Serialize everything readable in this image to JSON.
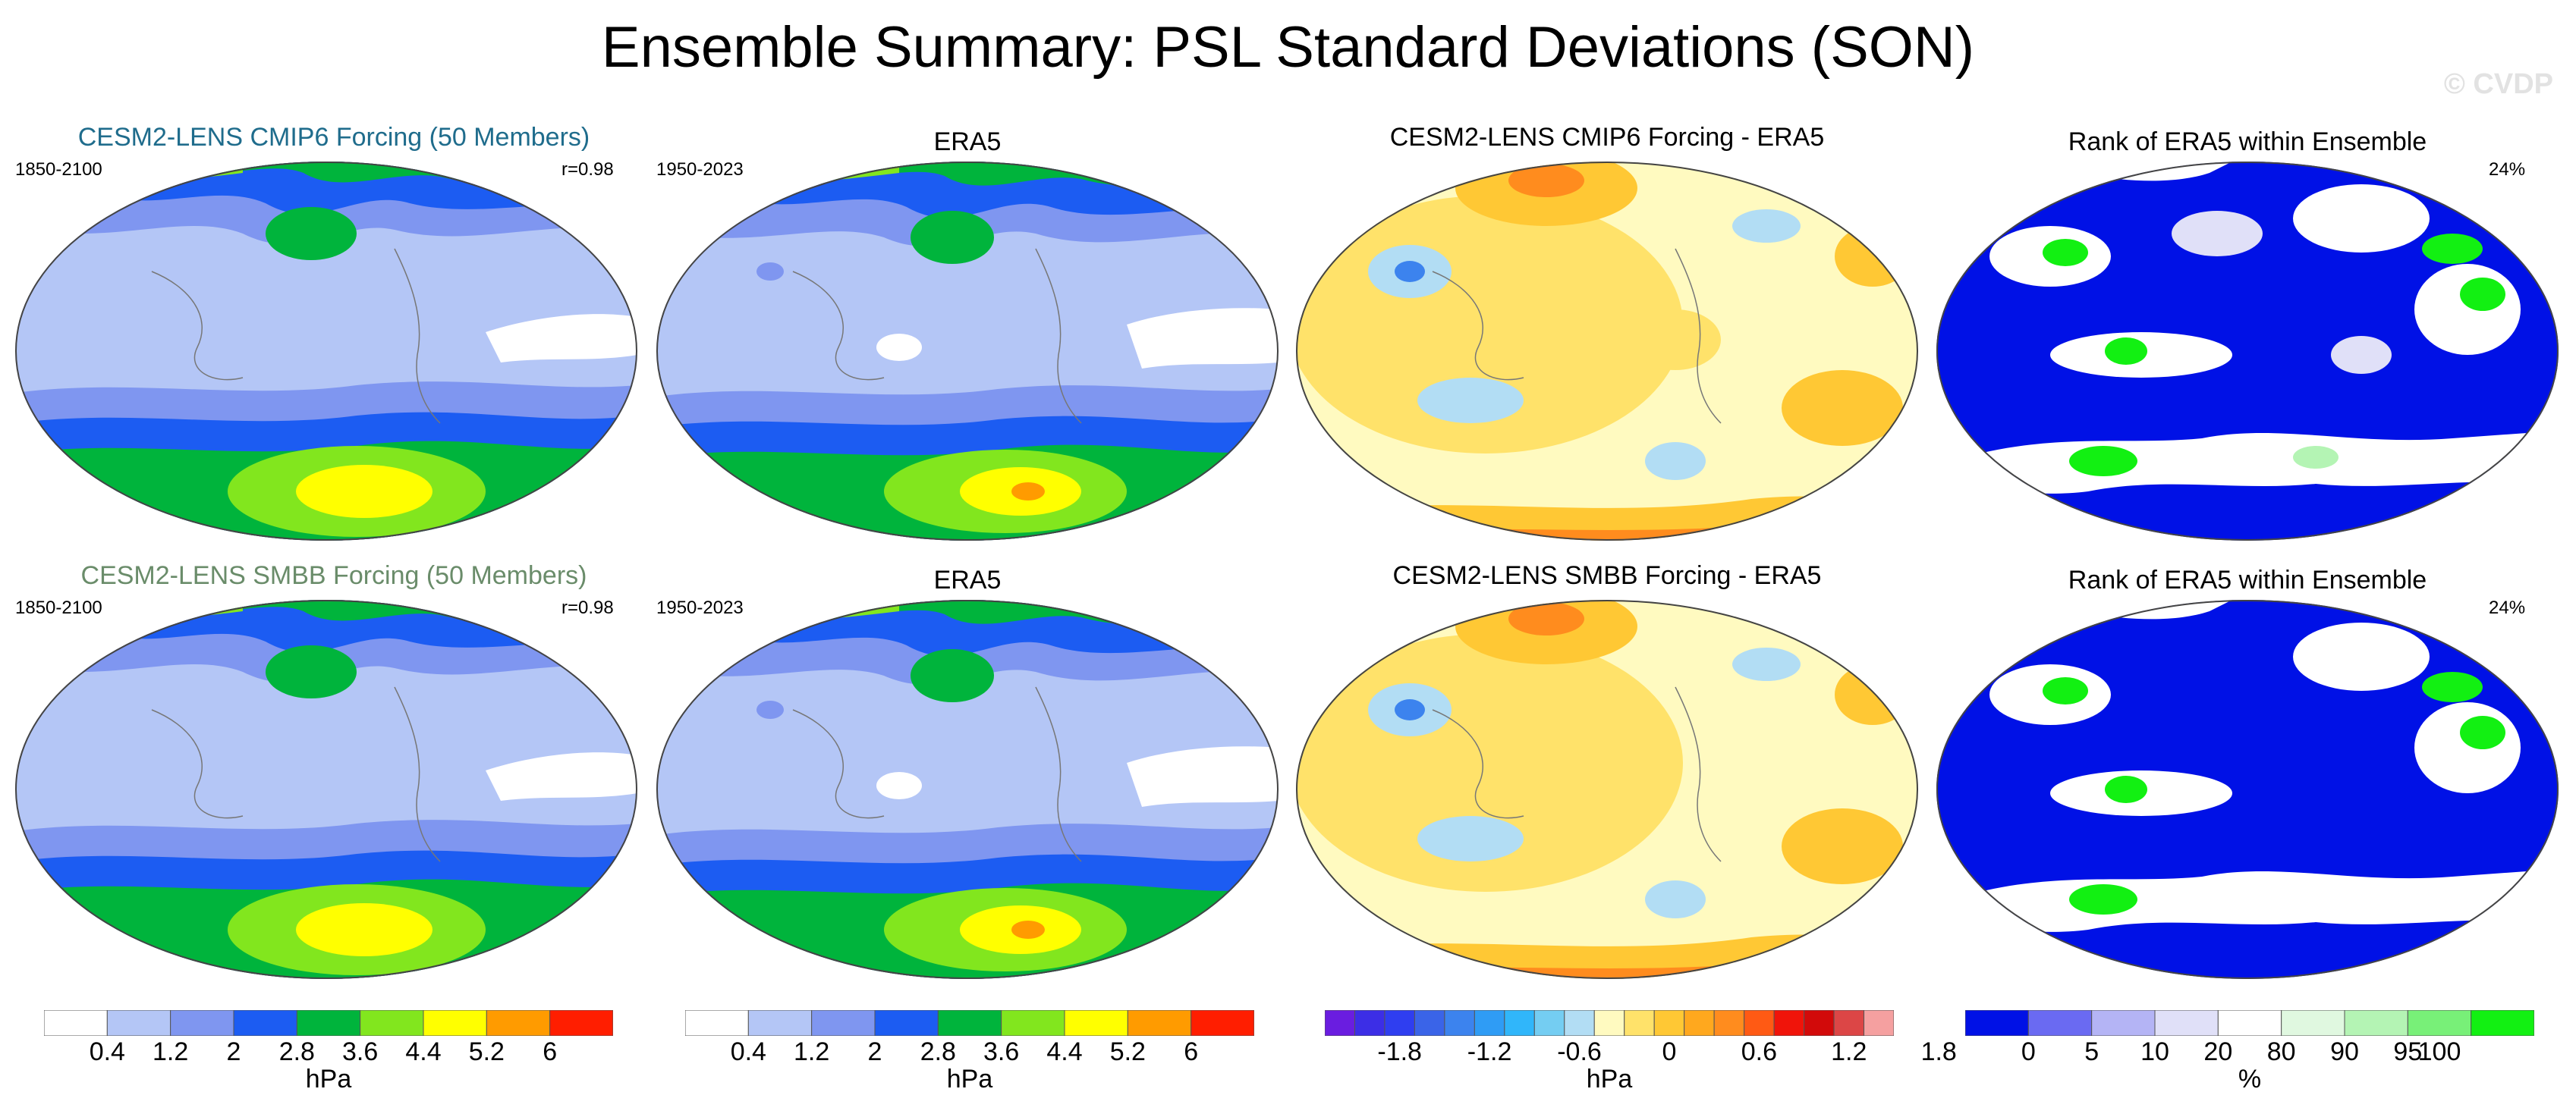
{
  "title": "Ensemble Summary: PSL Standard Deviations (SON)",
  "watermark": "© CVDP",
  "rows": [
    {
      "model_title": "CESM2-LENS CMIP6 Forcing (50 Members)",
      "model_title_color": "#1f6c8c",
      "model_years": "1850-2100",
      "pattern_corr": "r=0.98",
      "obs_title": "ERA5",
      "obs_years": "1950-2023",
      "diff_title": "CESM2-LENS CMIP6 Forcing - ERA5",
      "rank_title": "Rank of ERA5 within Ensemble",
      "rank_percent": "24%"
    },
    {
      "model_title": "CESM2-LENS SMBB Forcing (50 Members)",
      "model_title_color": "#6a8c6a",
      "model_years": "1850-2100",
      "pattern_corr": "r=0.98",
      "obs_title": "ERA5",
      "obs_years": "1950-2023",
      "diff_title": "CESM2-LENS SMBB Forcing - ERA5",
      "rank_title": "Rank of ERA5 within Ensemble",
      "rank_percent": "24%"
    }
  ],
  "chart_data": [
    {
      "type": "heatmap",
      "name": "stddev-colorbar",
      "unit": "hPa",
      "levels": [
        0.4,
        0.8,
        1.2,
        1.6,
        2.0,
        2.4,
        2.8,
        3.2,
        3.6,
        4.0,
        4.4,
        4.8,
        5.2,
        5.6,
        6.0,
        6.4
      ],
      "tick_labels": [
        "0.4",
        "1.2",
        "2",
        "2.8",
        "3.6",
        "4.4",
        "5.2",
        "6"
      ],
      "colors": [
        "#ffffff",
        "#b4c6f6",
        "#7f96f0",
        "#1c5cf2",
        "#00b43c",
        "#82e61e",
        "#ffff00",
        "#ff9b00",
        "#ff1e00"
      ]
    },
    {
      "type": "heatmap",
      "name": "difference-colorbar",
      "unit": "hPa",
      "tick_labels": [
        "-1.8",
        "-1.2",
        "-0.6",
        "0",
        "0.6",
        "1.2",
        "1.8"
      ],
      "colors": [
        "#6a1de0",
        "#3c2ee6",
        "#2f3ef0",
        "#3a64e8",
        "#3c83ee",
        "#2f9cf5",
        "#30b6fa",
        "#74cdf2",
        "#b2ddf4",
        "#fffac0",
        "#ffe26a",
        "#ffc834",
        "#ffa81e",
        "#ff8c1e",
        "#ff5a14",
        "#f0140a",
        "#d20a0a",
        "#dc4646",
        "#f5a0a0"
      ]
    },
    {
      "type": "heatmap",
      "name": "rank-colorbar",
      "unit": "%",
      "tick_labels": [
        "0",
        "5",
        "10",
        "20",
        "80",
        "90",
        "95",
        "100"
      ],
      "colors": [
        "#0011e6",
        "#6a6af2",
        "#b4b4f5",
        "#e0e0f8",
        "#ffffff",
        "#e0f8e0",
        "#b4f4b4",
        "#78f078",
        "#12f012"
      ]
    }
  ]
}
